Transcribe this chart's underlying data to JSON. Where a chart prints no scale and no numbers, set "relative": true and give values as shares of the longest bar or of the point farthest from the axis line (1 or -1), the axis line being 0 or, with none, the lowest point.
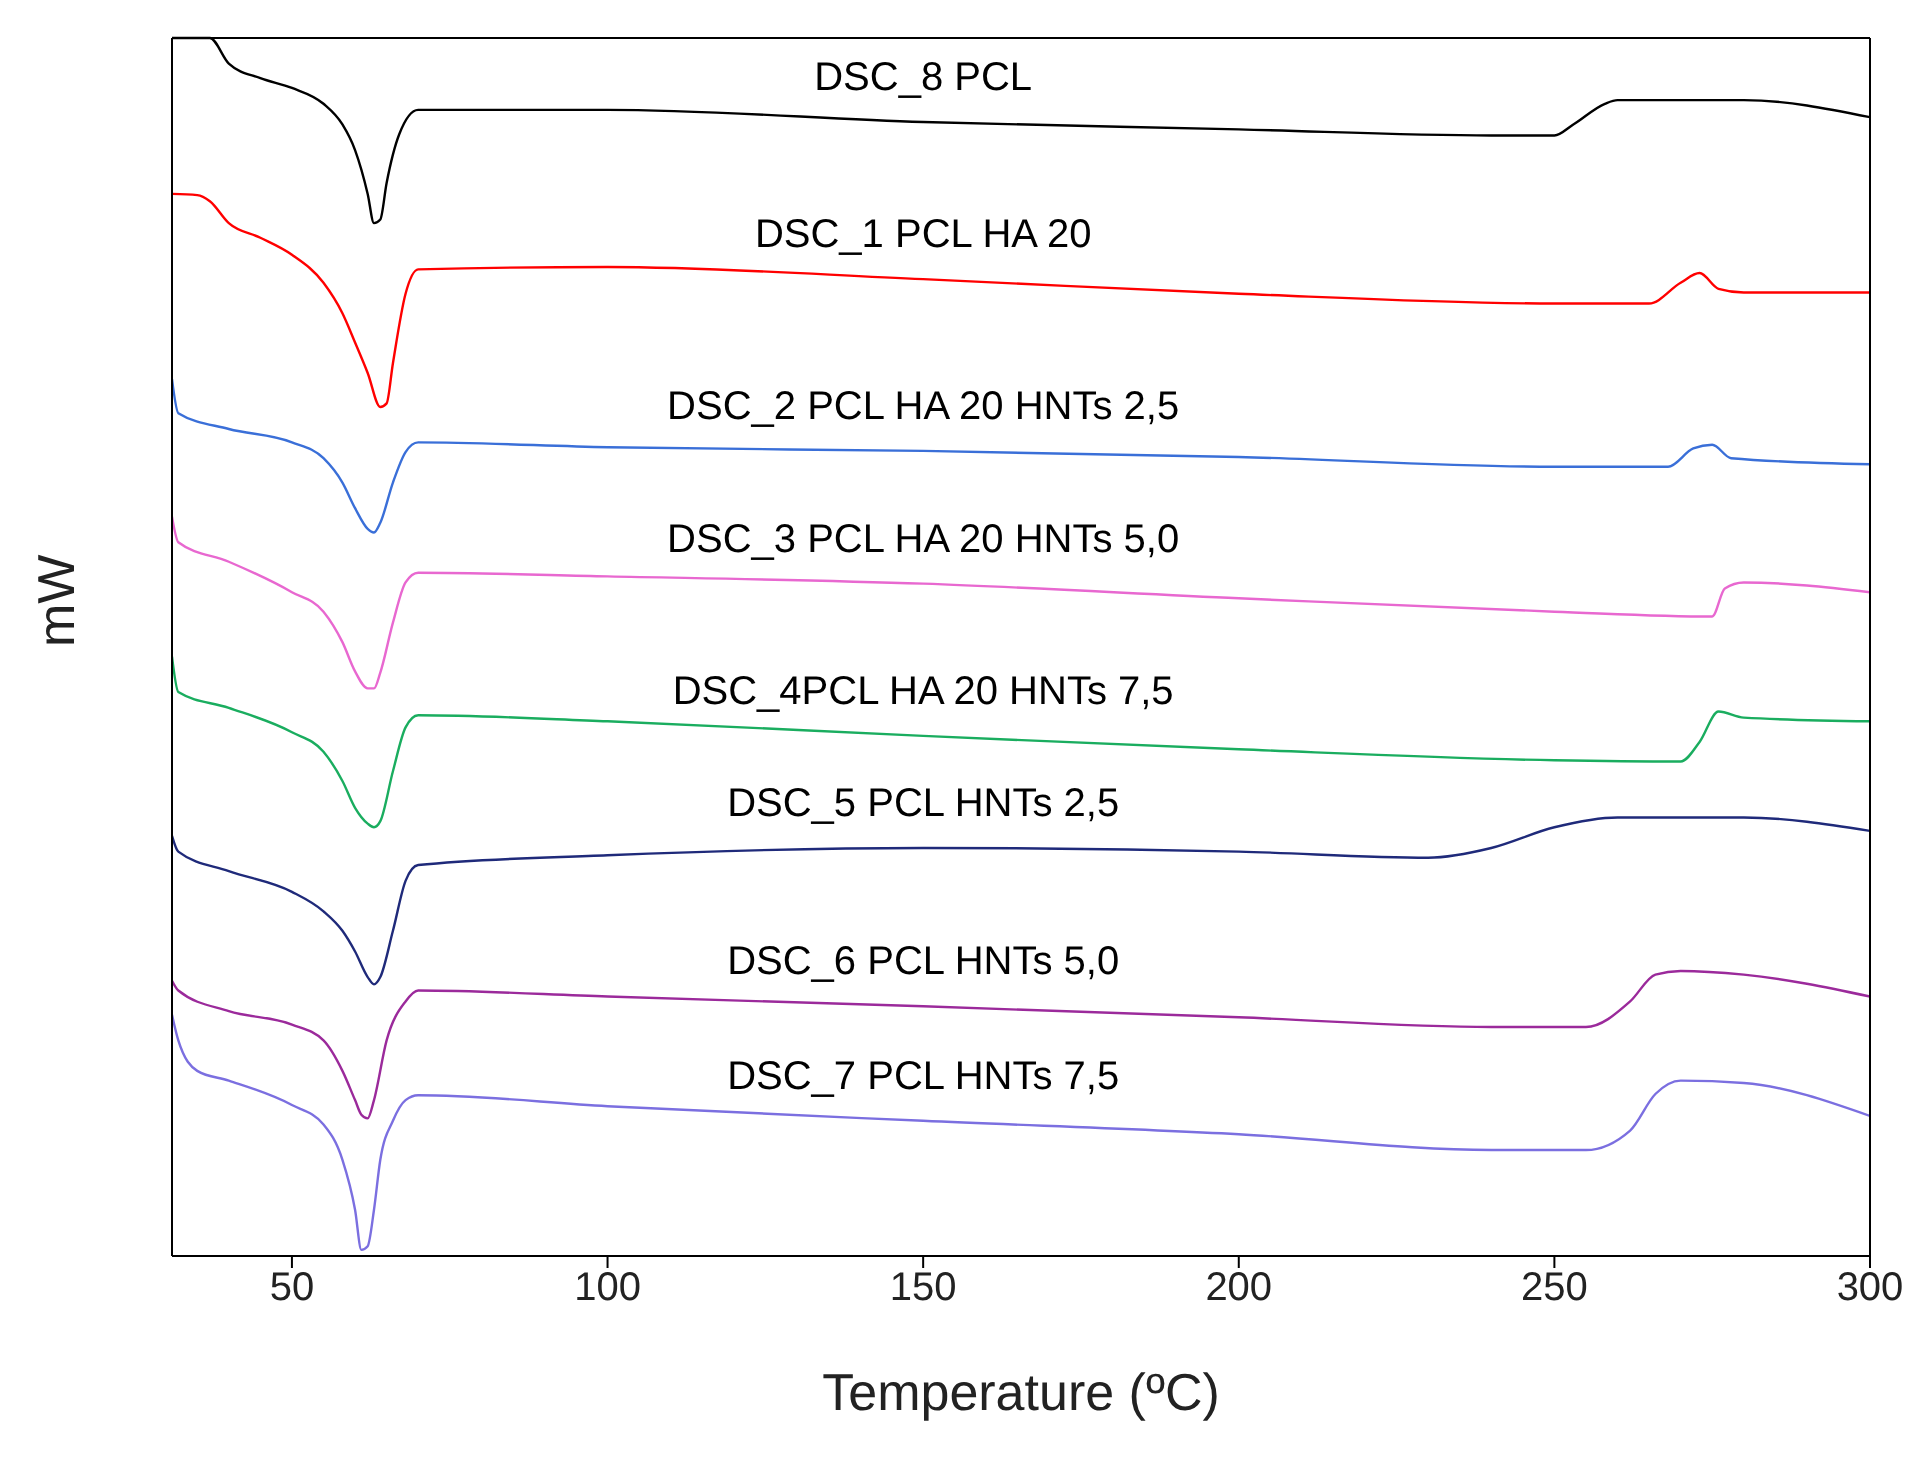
{
  "chart_data": {
    "type": "line",
    "relative": true,
    "xlabel": "Temperature (ºC)",
    "ylabel": "mW",
    "xlim": [
      31,
      300
    ],
    "xticks": [
      50,
      100,
      150,
      200,
      250,
      300
    ],
    "marker": "none",
    "line_style": "solid",
    "series": [
      {
        "name": "DSC_8 PCL",
        "color": "#000000",
        "x": [
          31,
          37,
          40,
          45,
          50,
          55,
          58,
          60,
          62,
          63,
          64,
          65,
          67,
          70,
          100,
          150,
          200,
          240,
          250,
          253,
          258,
          260,
          280,
          300
        ],
        "values": [
          1.0,
          1.0,
          0.979,
          0.967,
          0.959,
          0.946,
          0.929,
          0.908,
          0.872,
          0.848,
          0.851,
          0.881,
          0.921,
          0.941,
          0.941,
          0.931,
          0.925,
          0.92,
          0.92,
          0.929,
          0.946,
          0.949,
          0.949,
          0.935
        ]
      },
      {
        "name": "DSC_1 PCL HA 20",
        "color": "#ff0000",
        "x": [
          31,
          35,
          37,
          40,
          45,
          50,
          55,
          58,
          60,
          62,
          64,
          65,
          66,
          68,
          70,
          100,
          150,
          200,
          250,
          265,
          270,
          273,
          276,
          280,
          300
        ],
        "values": [
          0.872,
          0.871,
          0.866,
          0.848,
          0.836,
          0.822,
          0.799,
          0.774,
          0.75,
          0.725,
          0.697,
          0.7,
          0.733,
          0.79,
          0.81,
          0.812,
          0.802,
          0.79,
          0.782,
          0.782,
          0.799,
          0.807,
          0.794,
          0.791,
          0.791
        ]
      },
      {
        "name": "DSC_2 PCL HA 20 HNTs 2,5",
        "color": "#3a6fd8",
        "x": [
          31,
          32,
          40,
          50,
          55,
          58,
          60,
          62,
          63,
          64,
          66,
          68,
          70,
          100,
          150,
          200,
          250,
          268,
          272,
          275,
          278,
          300
        ],
        "values": [
          0.72,
          0.692,
          0.679,
          0.668,
          0.655,
          0.635,
          0.614,
          0.597,
          0.594,
          0.602,
          0.635,
          0.66,
          0.668,
          0.664,
          0.661,
          0.656,
          0.648,
          0.648,
          0.663,
          0.666,
          0.655,
          0.65
        ]
      },
      {
        "name": "DSC_3 PCL HA 20 HNTs 5,0",
        "color": "#e868d0",
        "x": [
          31,
          32,
          40,
          50,
          55,
          58,
          60,
          62,
          63,
          64,
          66,
          68,
          70,
          100,
          150,
          200,
          250,
          275,
          277,
          280,
          300
        ],
        "values": [
          0.607,
          0.586,
          0.57,
          0.545,
          0.529,
          0.504,
          0.48,
          0.466,
          0.466,
          0.479,
          0.52,
          0.553,
          0.561,
          0.558,
          0.552,
          0.54,
          0.529,
          0.525,
          0.548,
          0.553,
          0.545
        ]
      },
      {
        "name": "DSC_4PCL HA 20 HNTs 7,5",
        "color": "#1aad5f",
        "x": [
          31,
          32,
          40,
          50,
          55,
          58,
          60,
          62,
          63,
          64,
          66,
          68,
          70,
          100,
          150,
          200,
          250,
          270,
          273,
          276,
          280,
          300
        ],
        "values": [
          0.492,
          0.463,
          0.45,
          0.43,
          0.414,
          0.39,
          0.368,
          0.355,
          0.352,
          0.357,
          0.398,
          0.434,
          0.444,
          0.439,
          0.427,
          0.416,
          0.407,
          0.406,
          0.422,
          0.447,
          0.442,
          0.439
        ]
      },
      {
        "name": "DSC_5 PCL HNTs 2,5",
        "color": "#1f2a7a",
        "x": [
          31,
          32,
          40,
          50,
          55,
          58,
          60,
          62,
          63,
          64,
          66,
          68,
          70,
          100,
          150,
          200,
          230,
          240,
          250,
          260,
          280,
          300
        ],
        "values": [
          0.345,
          0.332,
          0.316,
          0.299,
          0.283,
          0.267,
          0.25,
          0.229,
          0.223,
          0.229,
          0.267,
          0.308,
          0.321,
          0.329,
          0.335,
          0.332,
          0.327,
          0.335,
          0.352,
          0.36,
          0.36,
          0.349
        ]
      },
      {
        "name": "DSC_6 PCL HNTs 5,0",
        "color": "#9b2a9b",
        "x": [
          31,
          32,
          40,
          50,
          55,
          58,
          60,
          61,
          62,
          63,
          65,
          68,
          70,
          100,
          150,
          200,
          240,
          255,
          262,
          266,
          270,
          280,
          300
        ],
        "values": [
          0.226,
          0.218,
          0.201,
          0.19,
          0.177,
          0.152,
          0.128,
          0.116,
          0.113,
          0.128,
          0.177,
          0.209,
          0.218,
          0.213,
          0.205,
          0.196,
          0.188,
          0.188,
          0.209,
          0.231,
          0.234,
          0.231,
          0.213
        ]
      },
      {
        "name": "DSC_7 PCL HNTs 7,5",
        "color": "#7b6fe0",
        "x": [
          31,
          32,
          35,
          40,
          50,
          55,
          58,
          60,
          61,
          62,
          63,
          64,
          66,
          68,
          70,
          100,
          150,
          200,
          240,
          255,
          262,
          266,
          270,
          280,
          300
        ],
        "values": [
          0.198,
          0.177,
          0.152,
          0.144,
          0.124,
          0.108,
          0.079,
          0.038,
          0.005,
          0.008,
          0.038,
          0.079,
          0.111,
          0.128,
          0.132,
          0.123,
          0.111,
          0.1,
          0.087,
          0.087,
          0.103,
          0.133,
          0.144,
          0.142,
          0.115
        ]
      }
    ]
  }
}
